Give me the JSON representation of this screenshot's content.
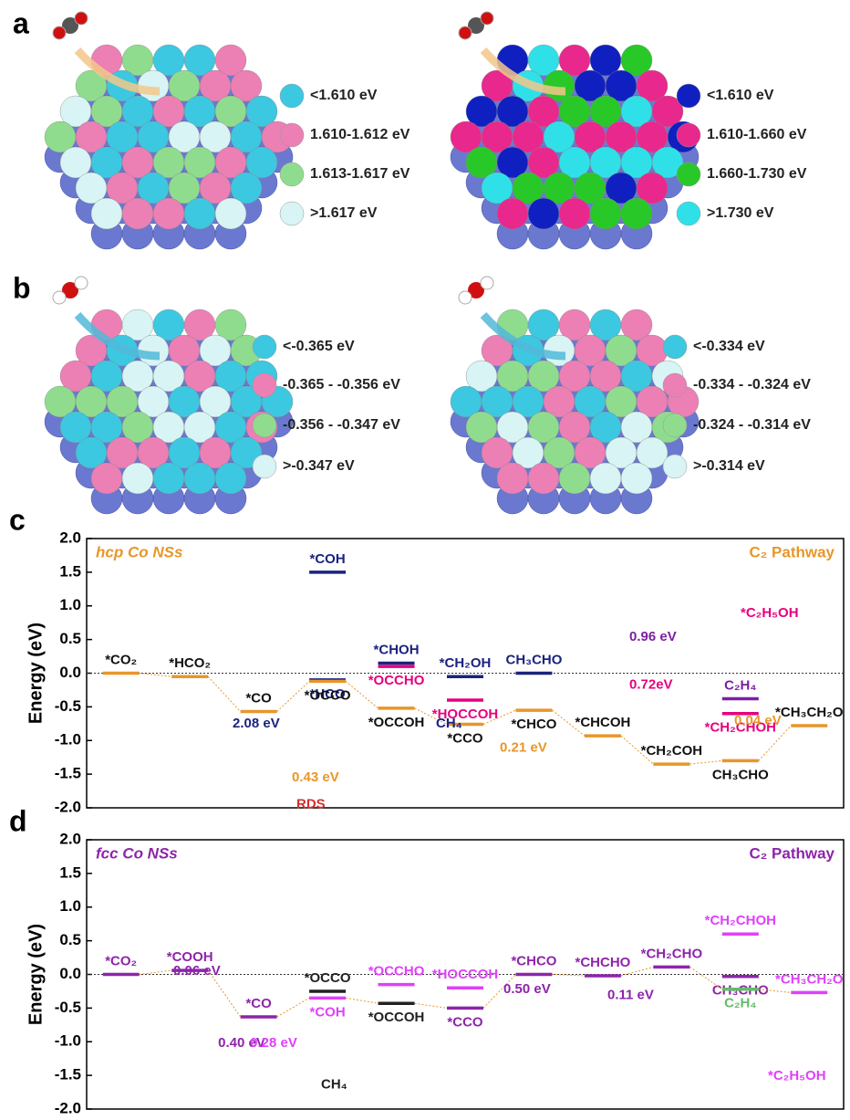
{
  "panels": [
    {
      "letter": "a",
      "surfaces": [
        {
          "legend": [
            {
              "color": "#3cc8e0",
              "label": "<1.610 eV"
            },
            {
              "color": "#ec7fb4",
              "label": "1.610-1.612 eV"
            },
            {
              "color": "#8fdc8f",
              "label": "1.613-1.617 eV"
            },
            {
              "color": "#d8f4f4",
              "label": ">1.617 eV"
            }
          ]
        },
        {
          "legend": [
            {
              "color": "#1020c0",
              "label": "<1.610 eV"
            },
            {
              "color": "#e8288c",
              "label": "1.610-1.660 eV"
            },
            {
              "color": "#28c828",
              "label": "1.660-1.730 eV"
            },
            {
              "color": "#30e0e8",
              "label": ">1.730 eV"
            }
          ]
        }
      ]
    },
    {
      "letter": "b",
      "surfaces": [
        {
          "legend": [
            {
              "color": "#3cc8e0",
              "label": "<-0.365 eV"
            },
            {
              "color": "#ec7fb4",
              "label": "-0.365 - -0.356 eV"
            },
            {
              "color": "#8fdc8f",
              "label": "-0.356 - -0.347 eV"
            },
            {
              "color": "#d8f4f4",
              "label": ">-0.347 eV"
            }
          ]
        },
        {
          "legend": [
            {
              "color": "#3cc8e0",
              "label": "<-0.334 eV"
            },
            {
              "color": "#ec7fb4",
              "label": "-0.334 - -0.324 eV"
            },
            {
              "color": "#8fdc8f",
              "label": "-0.324 - -0.314 eV"
            },
            {
              "color": "#d8f4f4",
              "label": ">-0.314 eV"
            }
          ]
        }
      ]
    }
  ],
  "chart_data": [
    {
      "type": "energy-diagram",
      "letter": "c",
      "title": "hcp Co NSs",
      "subtitle": "C₂ Pathway",
      "title_color": "#e8962a",
      "y_label": "Energy (eV)",
      "ylim": [
        -2,
        2
      ],
      "yticks": [
        {
          "value": -2,
          "label": "-2.0"
        },
        {
          "value": -1.5,
          "label": "-1.5"
        },
        {
          "value": -1,
          "label": "-1.0"
        },
        {
          "value": -0.5,
          "label": "-0.5"
        },
        {
          "value": 0,
          "label": "0.0"
        },
        {
          "value": 0.5,
          "label": "0.5"
        },
        {
          "value": 1,
          "label": "1.0"
        },
        {
          "value": 1.5,
          "label": "1.5"
        },
        {
          "value": 2,
          "label": "2.0"
        }
      ],
      "steps": [
        [
          {
            "label": "*CO₂",
            "value": 0,
            "color": "#e8962a"
          }
        ],
        [
          {
            "label": "*HCO₂",
            "value": -0.05,
            "color": "#e8962a"
          }
        ],
        [
          {
            "label": "*CO",
            "value": -0.57,
            "color": "#e8962a"
          }
        ],
        [
          {
            "label": "*COH",
            "value": 1.5,
            "color": "#1a237e"
          },
          {
            "label": "*HCO",
            "value": -0.1,
            "color": "#1a237e"
          },
          {
            "label": "*OCCO",
            "value": -0.12,
            "color": "#e8962a"
          }
        ],
        [
          {
            "label": "*CHOH",
            "value": 0.15,
            "color": "#1a237e"
          },
          {
            "label": "*OCCHO",
            "value": 0.1,
            "color": "#e6007e"
          },
          {
            "label": "*OCCOH",
            "value": -0.52,
            "color": "#e8962a"
          }
        ],
        [
          {
            "label": "*CH₂OH",
            "value": -0.05,
            "color": "#1a237e"
          },
          {
            "label": "*HOCCOH",
            "value": -0.4,
            "color": "#e6007e"
          },
          {
            "label": "*CCO",
            "value": -0.76,
            "color": "#e8962a"
          }
        ],
        [
          {
            "label": "CH₃CHO",
            "value": 0,
            "color": "#1a237e"
          },
          {
            "label": "*CHCO",
            "value": -0.55,
            "color": "#e8962a"
          }
        ],
        [
          {
            "label": "*CHCOH",
            "value": -0.93,
            "color": "#e8962a"
          }
        ],
        [
          {
            "label": "*CH₂COH",
            "value": -1.35,
            "color": "#e8962a"
          }
        ],
        [
          {
            "label": "C₂H₄",
            "value": -0.38,
            "color": "#7b1fa2"
          },
          {
            "label": "*CH₂CHOH",
            "value": -0.6,
            "color": "#e6007e"
          },
          {
            "label": "CH₃CHO",
            "value": -1.3,
            "color": "#e8962a"
          }
        ],
        [
          {
            "label": "*CH₃CH₂O",
            "value": -0.78,
            "color": "#e8962a"
          }
        ]
      ],
      "annotations": [
        {
          "text": "2.08 eV",
          "color": "#1a237e"
        },
        {
          "text": "CH₄",
          "color": "#1a237e"
        },
        {
          "text": "0.43 eV",
          "color": "#e8962a"
        },
        {
          "text": "RDS",
          "color": "#d32f2f"
        },
        {
          "text": "0.21 eV",
          "color": "#e8962a"
        },
        {
          "text": "0.96 eV",
          "color": "#7b1fa2"
        },
        {
          "text": "0.72eV",
          "color": "#e6007e"
        },
        {
          "text": "0.04 eV",
          "color": "#e8962a"
        },
        {
          "text": "*C₂H₅OH",
          "color": "#e6007e"
        }
      ]
    },
    {
      "type": "energy-diagram",
      "letter": "d",
      "title": "fcc Co NSs",
      "subtitle": "C₂ Pathway",
      "title_color": "#8e24aa",
      "y_label": "Energy (eV)",
      "ylim": [
        -2,
        2
      ],
      "yticks": [
        {
          "value": -2,
          "label": "-2.0"
        },
        {
          "value": -1.5,
          "label": "-1.5"
        },
        {
          "value": -1,
          "label": "-1.0"
        },
        {
          "value": -0.5,
          "label": "-0.5"
        },
        {
          "value": 0,
          "label": "0.0"
        },
        {
          "value": 0.5,
          "label": "0.5"
        },
        {
          "value": 1,
          "label": "1.0"
        },
        {
          "value": 1.5,
          "label": "1.5"
        },
        {
          "value": 2,
          "label": "2.0"
        }
      ],
      "steps": [
        [
          {
            "label": "*CO₂",
            "value": 0,
            "color": "#8e24aa"
          }
        ],
        [
          {
            "label": "*COOH",
            "value": 0.06,
            "color": "#8e24aa"
          }
        ],
        [
          {
            "label": "*CO",
            "value": -0.63,
            "color": "#8e24aa"
          }
        ],
        [
          {
            "label": "*OCCO",
            "value": -0.25,
            "color": "#222222"
          },
          {
            "label": "*COH",
            "value": -0.35,
            "color": "#e040fb"
          }
        ],
        [
          {
            "label": "*OCCHO",
            "value": -0.15,
            "color": "#e040fb"
          },
          {
            "label": "*OCCOH",
            "value": -0.43,
            "color": "#222222"
          }
        ],
        [
          {
            "label": "*HOCCOH",
            "value": -0.2,
            "color": "#e040fb"
          },
          {
            "label": "*CCO",
            "value": -0.5,
            "color": "#8e24aa"
          }
        ],
        [
          {
            "label": "*CHCO",
            "value": 0,
            "color": "#8e24aa"
          }
        ],
        [
          {
            "label": "*CHCHO",
            "value": -0.02,
            "color": "#8e24aa"
          }
        ],
        [
          {
            "label": "*CH₂CHO",
            "value": 0.11,
            "color": "#8e24aa"
          }
        ],
        [
          {
            "label": "*CH₂CHOH",
            "value": 0.6,
            "color": "#e040fb"
          },
          {
            "label": "CH₃CHO",
            "value": -0.03,
            "color": "#8e24aa"
          },
          {
            "label": "C₂H₄",
            "value": -0.22,
            "color": "#66bb6a"
          }
        ],
        [
          {
            "label": "*CH₃CH₂O",
            "value": -0.27,
            "color": "#e040fb"
          }
        ]
      ],
      "annotations": [
        {
          "text": "0.06 eV",
          "color": "#8e24aa"
        },
        {
          "text": "0.40 eV",
          "color": "#8e24aa"
        },
        {
          "text": "0.28 eV",
          "color": "#e040fb"
        },
        {
          "text": "CH₄",
          "color": "#222222"
        },
        {
          "text": "0.50 eV",
          "color": "#8e24aa"
        },
        {
          "text": "0.11 eV",
          "color": "#8e24aa"
        },
        {
          "text": "*C₂H₅OH",
          "color": "#e040fb"
        }
      ]
    }
  ]
}
